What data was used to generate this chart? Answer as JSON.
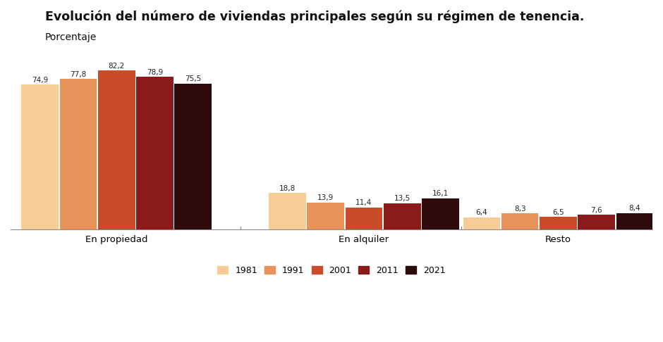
{
  "title": "Evolución del número de viviendas principales según su régimen de tenencia.",
  "subtitle": "Porcentaje",
  "categories": [
    "En propiedad",
    "En alquiler",
    "Resto"
  ],
  "years": [
    "1981",
    "1991",
    "2001",
    "2011",
    "2021"
  ],
  "colors": [
    "#F7CC96",
    "#E8935A",
    "#C94B2A",
    "#8B1A1A",
    "#2E0A0A"
  ],
  "values": {
    "En propiedad": [
      74.9,
      77.8,
      82.2,
      78.9,
      75.5
    ],
    "En alquiler": [
      18.8,
      13.9,
      11.4,
      13.5,
      16.1
    ],
    "Resto": [
      6.4,
      8.3,
      6.5,
      7.6,
      8.4
    ]
  },
  "ylim": [
    0,
    92
  ],
  "bar_width": 0.13,
  "background_color": "#ffffff",
  "group_centers": [
    0.38,
    1.22,
    1.88
  ],
  "xlim": [
    0.02,
    2.2
  ]
}
